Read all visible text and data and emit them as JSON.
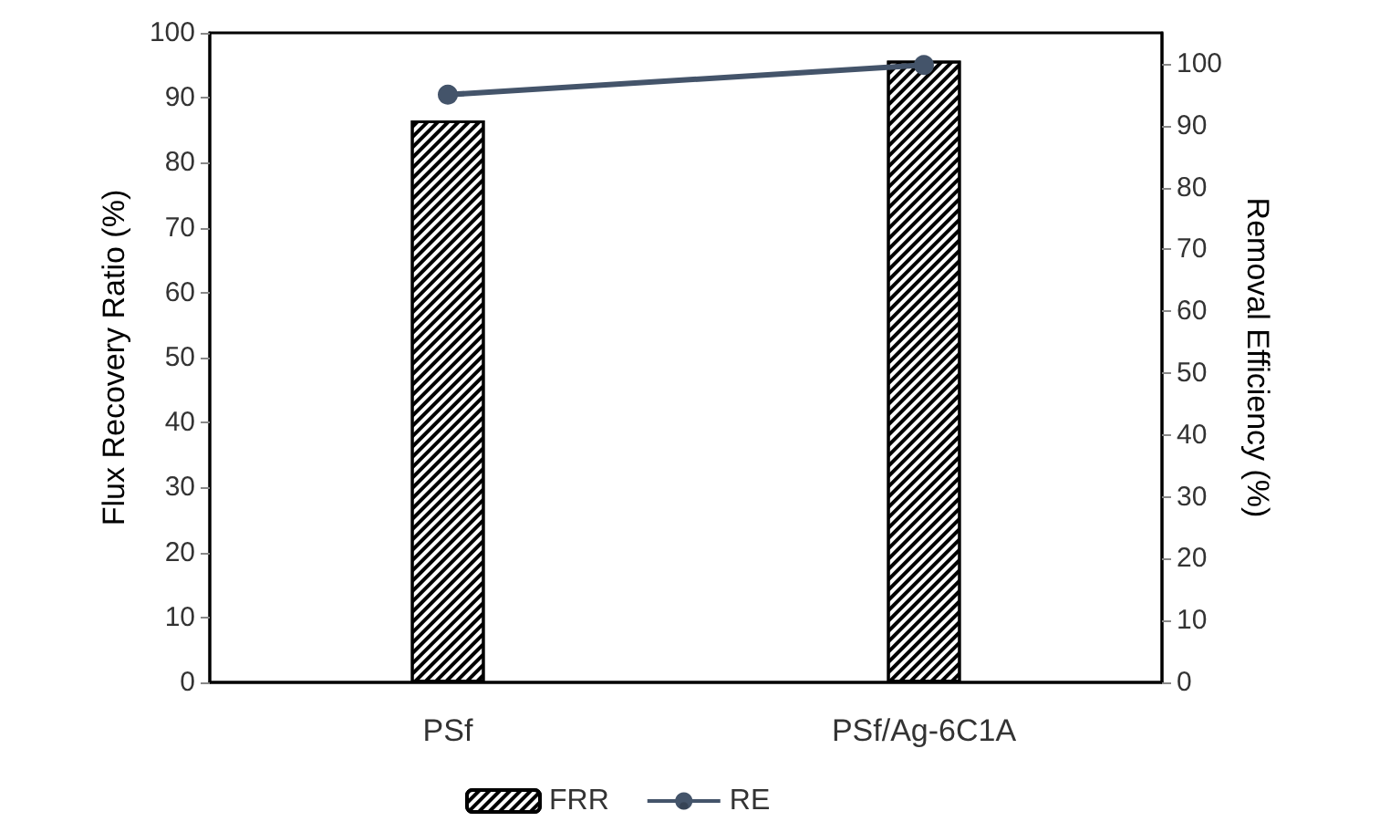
{
  "chart_data": {
    "type": "bar",
    "ylabel": "Flux Recovery Ratio (%)",
    "y2label": "Removal Efficiency (%)",
    "categories": [
      "PSf",
      "PSf/Ag-6C1A"
    ],
    "series": [
      {
        "name": "FRR",
        "color": "#000000",
        "values": [
          86.5,
          95.7
        ]
      },
      {
        "name": "RE",
        "type": "line",
        "axis": "y2",
        "color": "#44546a",
        "values": [
          95,
          99.8
        ]
      }
    ],
    "ylim": [
      0,
      100
    ],
    "yticks": [
      0,
      10,
      20,
      30,
      40,
      50,
      60,
      70,
      80,
      90,
      100
    ],
    "y2lim": [
      0,
      105
    ],
    "y2ticks": [
      0,
      10,
      20,
      30,
      40,
      50,
      60,
      70,
      80,
      90,
      100
    ],
    "grid": false,
    "legend": "bottom",
    "marker": "circle"
  }
}
